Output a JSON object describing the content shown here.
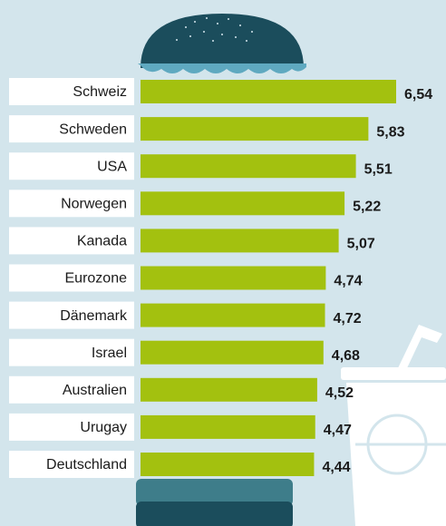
{
  "chart_data": {
    "type": "bar",
    "orientation": "horizontal",
    "categories": [
      "Schweiz",
      "Schweden",
      "USA",
      "Norwegen",
      "Kanada",
      "Eurozone",
      "Dänemark",
      "Israel",
      "Australien",
      "Urugay",
      "Deutschland"
    ],
    "values": [
      6.54,
      5.83,
      5.51,
      5.22,
      5.07,
      4.74,
      4.72,
      4.68,
      4.52,
      4.47,
      4.44
    ],
    "value_labels": [
      "6,54",
      "5,83",
      "5,51",
      "5,22",
      "5,07",
      "4,74",
      "4,72",
      "4,68",
      "4,52",
      "4,47",
      "4,44"
    ],
    "color": "#a3c10f"
  }
}
